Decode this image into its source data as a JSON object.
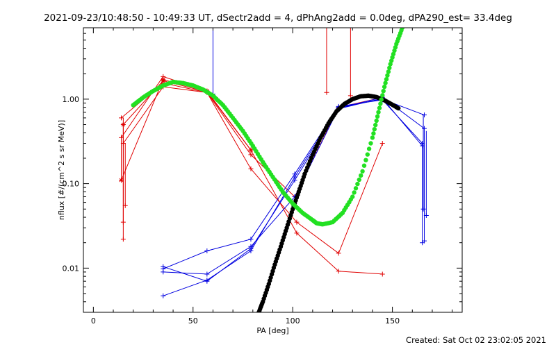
{
  "title": "2021-09-23/10:48:50 - 10:49:33 UT, dSectr2add = 4, dPhAng2add = 0.0deg, dPA290_est= 33.4deg",
  "footer": "Created: Sat Oct 02 23:02:05 2021",
  "chart_data": {
    "type": "line",
    "xlabel": "PA [deg]",
    "ylabel": "nflux [#/(cm^2 s sr MeV)]",
    "xlim": [
      -5,
      185
    ],
    "ylim": [
      0.003,
      7.0
    ],
    "yscale": "log",
    "x_ticks": [
      0,
      50,
      100,
      150
    ],
    "y_ticks": [
      0.01,
      0.1,
      1.0
    ],
    "y_tick_labels": [
      "0.01",
      "0.10",
      "1.00"
    ],
    "colors": {
      "red": "#e00000",
      "blue": "#0000e0",
      "green": "#22e022",
      "black": "#000000"
    },
    "red_series": [
      {
        "x": [
          14,
          35,
          57,
          79,
          102,
          123,
          145
        ],
        "y": [
          0.35,
          1.85,
          1.25,
          0.25,
          0.026,
          0.0092,
          0.0085
        ]
      },
      {
        "x": [
          14,
          35,
          57,
          79,
          102,
          123,
          145
        ],
        "y": [
          0.6,
          1.55,
          1.2,
          0.15,
          0.035,
          0.015,
          0.3
        ]
      },
      {
        "x": [
          15,
          35,
          57,
          79,
          101,
          123,
          145
        ],
        "y": [
          0.3,
          1.4,
          1.2,
          0.22,
          0.07,
          0.8,
          1.05
        ]
      },
      {
        "x": [
          14,
          35,
          57
        ],
        "y": [
          0.11,
          1.7,
          1.25
        ]
      },
      {
        "x": [
          15,
          35,
          57,
          79
        ],
        "y": [
          0.5,
          1.65,
          1.22,
          0.25
        ]
      }
    ],
    "red_vertical": [
      {
        "x": 14,
        "y": [
          0.38,
          0.11
        ]
      },
      {
        "x": 15,
        "y": [
          0.6,
          0.022
        ]
      },
      {
        "x": 15,
        "y": [
          0.5,
          0.035
        ]
      },
      {
        "x": 16,
        "y": [
          0.3,
          0.055
        ]
      },
      {
        "x": 117,
        "y": [
          7.0,
          1.2
        ]
      },
      {
        "x": 129,
        "y": [
          7.0,
          1.1
        ]
      }
    ],
    "blue_series": [
      {
        "x": [
          35,
          57,
          79,
          101,
          123,
          145,
          166
        ],
        "y": [
          0.0047,
          0.0072,
          0.016,
          0.12,
          0.8,
          1.0,
          0.65
        ]
      },
      {
        "x": [
          35,
          57,
          79,
          101,
          123,
          145,
          166
        ],
        "y": [
          0.009,
          0.0085,
          0.018,
          0.07,
          0.78,
          1.05,
          0.45
        ]
      },
      {
        "x": [
          35,
          57,
          79,
          101,
          123,
          145,
          165
        ],
        "y": [
          0.0098,
          0.016,
          0.022,
          0.13,
          0.82,
          0.98,
          0.3
        ]
      },
      {
        "x": [
          35,
          57,
          79,
          101,
          123,
          145,
          165
        ],
        "y": [
          0.0104,
          0.007,
          0.017,
          0.11,
          0.77,
          1.02,
          0.28
        ]
      }
    ],
    "blue_vertical": [
      {
        "x": 60,
        "y": [
          7.0,
          1.15
        ]
      },
      {
        "x": 165,
        "y": [
          0.3,
          0.02
        ]
      },
      {
        "x": 165.5,
        "y": [
          0.65,
          0.05
        ]
      },
      {
        "x": 166,
        "y": [
          0.45,
          0.021
        ]
      },
      {
        "x": 167,
        "y": [
          0.42,
          0.042
        ]
      }
    ],
    "green_fit": {
      "x": [
        20,
        25,
        30,
        35,
        40,
        45,
        50,
        55,
        60,
        65,
        70,
        75,
        80,
        85,
        90,
        95,
        100,
        105,
        110,
        112,
        115,
        120,
        125,
        130,
        135,
        140,
        143,
        146,
        149,
        152,
        155
      ],
      "y": [
        0.85,
        1.05,
        1.25,
        1.45,
        1.6,
        1.55,
        1.45,
        1.3,
        1.1,
        0.85,
        0.6,
        0.42,
        0.28,
        0.18,
        0.12,
        0.08,
        0.058,
        0.045,
        0.037,
        0.034,
        0.033,
        0.035,
        0.045,
        0.07,
        0.14,
        0.35,
        0.7,
        1.4,
        2.6,
        4.5,
        7.0
      ]
    },
    "black_fit": {
      "x": [
        83,
        85,
        88,
        91,
        94,
        97,
        100,
        103,
        106,
        110,
        114,
        118,
        122,
        126,
        130,
        134,
        138,
        142,
        146,
        150,
        153
      ],
      "y": [
        0.003,
        0.004,
        0.0065,
        0.011,
        0.018,
        0.03,
        0.05,
        0.08,
        0.13,
        0.22,
        0.35,
        0.52,
        0.72,
        0.88,
        1.0,
        1.08,
        1.1,
        1.06,
        0.97,
        0.86,
        0.78
      ]
    }
  }
}
